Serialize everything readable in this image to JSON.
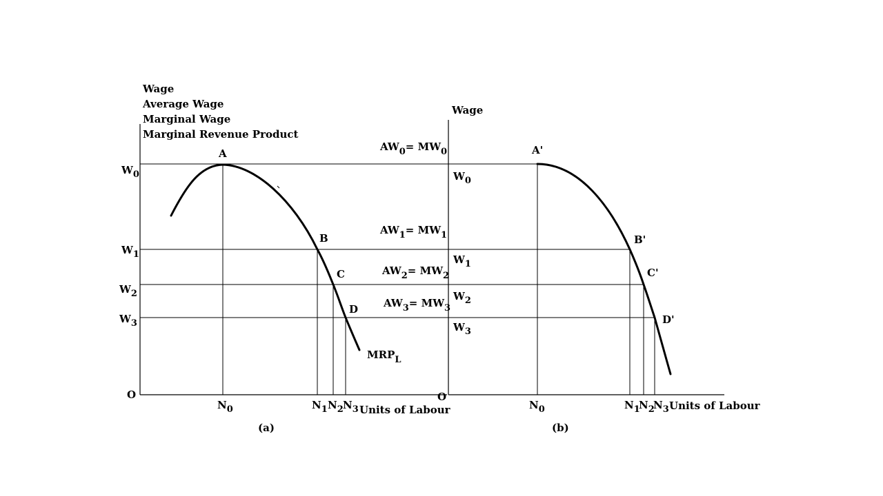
{
  "panel_a": {
    "ylabel_lines": [
      "Wage",
      "Average Wage",
      "Marginal Wage",
      "Marginal Revenue Product"
    ],
    "y_labels": [
      {
        "main": "W",
        "sub": "0"
      },
      {
        "main": "W",
        "sub": "1"
      },
      {
        "main": "W",
        "sub": "2"
      },
      {
        "main": "W",
        "sub": "3"
      }
    ],
    "origin": "O",
    "x_labels": [
      {
        "main": "N",
        "sub": "0"
      },
      {
        "main": "N",
        "sub": "1"
      },
      {
        "main": "N",
        "sub": "2"
      },
      {
        "main": "N",
        "sub": "3"
      }
    ],
    "xlabel": "Units of Labour",
    "points": [
      "A",
      "B",
      "C",
      "D"
    ],
    "curve_label": {
      "main": "MRP",
      "sub": "L"
    },
    "caption": "(a)"
  },
  "middle_labels": [
    {
      "aw": "AW",
      "sub1": "0",
      "eq": "= MW",
      "sub2": "0"
    },
    {
      "aw": "AW",
      "sub1": "1",
      "eq": "= MW",
      "sub2": "1"
    },
    {
      "aw": "AW",
      "sub1": "2",
      "eq": "= MW",
      "sub2": "2"
    },
    {
      "aw": "AW",
      "sub1": "3",
      "eq": "= MW",
      "sub2": "3"
    }
  ],
  "panel_b": {
    "ylabel": "Wage",
    "y_labels": [
      {
        "main": "W",
        "sub": "0"
      },
      {
        "main": "W",
        "sub": "1"
      },
      {
        "main": "W",
        "sub": "2"
      },
      {
        "main": "W",
        "sub": "3"
      }
    ],
    "origin": "O",
    "x_labels": [
      {
        "main": "N",
        "sub": "0"
      },
      {
        "main": "N",
        "sub": "1"
      },
      {
        "main": "N",
        "sub": "2"
      },
      {
        "main": "N",
        "sub": "3"
      }
    ],
    "xlabel": "Units of Labour",
    "points": [
      "A'",
      "B'",
      "C'",
      "D'"
    ],
    "caption": "(b)"
  }
}
